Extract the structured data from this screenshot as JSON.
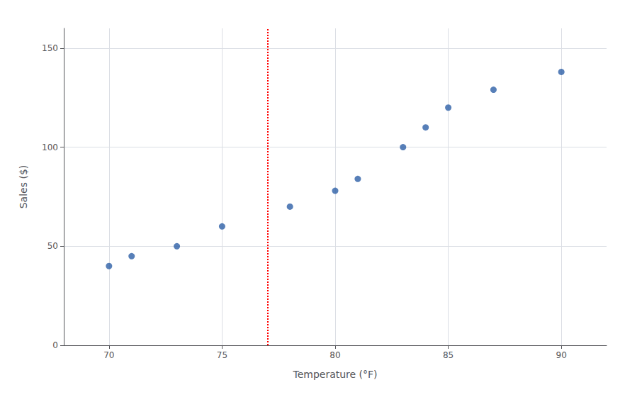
{
  "chart_data": {
    "type": "scatter",
    "xlabel": "Temperature (°F)",
    "ylabel": "Sales ($)",
    "x": [
      70,
      71,
      73,
      75,
      78,
      80,
      81,
      83,
      84,
      85,
      87,
      90
    ],
    "values": [
      40,
      45,
      50,
      60,
      70,
      78,
      84,
      100,
      110,
      120,
      129,
      138
    ],
    "color": "#2d5fa6",
    "xlim": [
      68,
      92
    ],
    "xticks": [
      70,
      75,
      80,
      85,
      90
    ],
    "ylim": [
      0,
      160
    ],
    "yticks": [
      0,
      50,
      100,
      150
    ],
    "grid": true,
    "vline": {
      "x": 77,
      "color": "red",
      "line_style": "dotted"
    }
  }
}
